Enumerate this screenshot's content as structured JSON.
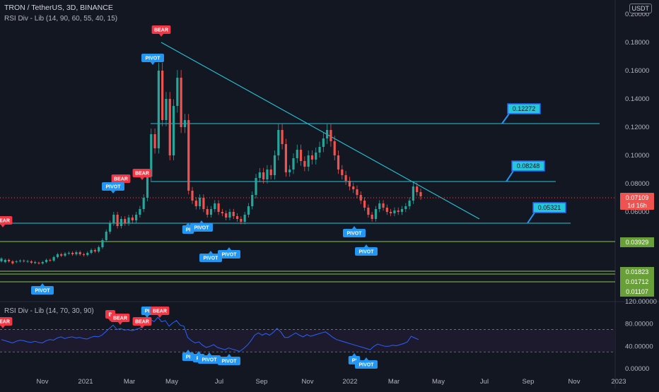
{
  "header": {
    "symbol_line": "TRON / TetherUS, 3D, BINANCE",
    "indicator_line": "RSI Div - Lib (14, 90, 60, 55, 40, 15)",
    "rsi_pane_title": "RSI Div - Lib (14, 70, 30, 90)",
    "currency_badge": "USDT"
  },
  "price_axis": {
    "ticks": [
      "0.20000",
      "0.18000",
      "0.16000",
      "0.14000",
      "0.12000",
      "0.10000",
      "0.08000",
      "0.06000"
    ]
  },
  "rsi_axis": {
    "ticks": [
      "120.00000",
      "80.00000",
      "40.00000",
      "0.00000"
    ]
  },
  "time_axis": {
    "labels": [
      "Nov",
      "2021",
      "Mar",
      "May",
      "Jul",
      "Sep",
      "Nov",
      "2022",
      "Mar",
      "May",
      "Jul",
      "Sep",
      "Nov",
      "2023"
    ]
  },
  "current_price": {
    "value": "0.07109",
    "countdown": "1d 16h"
  },
  "level_tags": [
    "0.03929",
    "0.01823",
    "0.01712",
    "0.01107"
  ],
  "level_boxes": [
    "0.12272",
    "0.08248",
    "0.05321"
  ],
  "markers": {
    "bear": "BEAR",
    "pivot": "PIVOT",
    "bear_short": "B",
    "pivot_short": "PI"
  },
  "colors": {
    "background": "#131722",
    "up_candle": "#26a69a",
    "down_candle": "#ef5350",
    "trendline": "#26c6da",
    "green_level": "#8bc34a",
    "bear_marker": "#f23645",
    "pivot_marker": "#2196f3",
    "rsi_line": "#2962ff"
  },
  "chart_data": {
    "type": "candlestick",
    "price_range": [
      0.0,
      0.2
    ],
    "rsi_range": [
      0,
      120
    ],
    "close_path": [
      [
        0.025,
        0.027
      ],
      [
        0.0245,
        0.026
      ],
      [
        0.026,
        0.025
      ],
      [
        0.025,
        0.0235
      ],
      [
        0.0245,
        0.025
      ],
      [
        0.025,
        0.0255
      ],
      [
        0.0255,
        0.025
      ],
      [
        0.0248,
        0.0252
      ],
      [
        0.025,
        0.024
      ],
      [
        0.0238,
        0.0245
      ],
      [
        0.024,
        0.0235
      ],
      [
        0.0235,
        0.0245
      ],
      [
        0.0245,
        0.026
      ],
      [
        0.026,
        0.0255
      ],
      [
        0.0255,
        0.028
      ],
      [
        0.028,
        0.03
      ],
      [
        0.03,
        0.029
      ],
      [
        0.029,
        0.0305
      ],
      [
        0.0305,
        0.031
      ],
      [
        0.031,
        0.03
      ],
      [
        0.03,
        0.0315
      ],
      [
        0.0315,
        0.03
      ],
      [
        0.03,
        0.0295
      ],
      [
        0.0295,
        0.031
      ],
      [
        0.031,
        0.033
      ],
      [
        0.033,
        0.032
      ],
      [
        0.032,
        0.035
      ],
      [
        0.035,
        0.04
      ],
      [
        0.04,
        0.046
      ],
      [
        0.046,
        0.052
      ],
      [
        0.052,
        0.058
      ],
      [
        0.058,
        0.05
      ],
      [
        0.05,
        0.055
      ],
      [
        0.055,
        0.052
      ],
      [
        0.052,
        0.056
      ],
      [
        0.056,
        0.054
      ],
      [
        0.054,
        0.058
      ],
      [
        0.058,
        0.062
      ],
      [
        0.062,
        0.07
      ],
      [
        0.07,
        0.085
      ],
      [
        0.085,
        0.115
      ],
      [
        0.115,
        0.105
      ],
      [
        0.105,
        0.16
      ],
      [
        0.16,
        0.125
      ],
      [
        0.125,
        0.14
      ],
      [
        0.14,
        0.1
      ],
      [
        0.1,
        0.135
      ],
      [
        0.135,
        0.155
      ],
      [
        0.155,
        0.12
      ],
      [
        0.12,
        0.125
      ],
      [
        0.125,
        0.075
      ],
      [
        0.075,
        0.068
      ],
      [
        0.068,
        0.064
      ],
      [
        0.064,
        0.07
      ],
      [
        0.07,
        0.062
      ],
      [
        0.062,
        0.058
      ],
      [
        0.058,
        0.062
      ],
      [
        0.062,
        0.066
      ],
      [
        0.066,
        0.06
      ],
      [
        0.06,
        0.059
      ],
      [
        0.059,
        0.056
      ],
      [
        0.056,
        0.06
      ],
      [
        0.06,
        0.057
      ],
      [
        0.057,
        0.055
      ],
      [
        0.055,
        0.053
      ],
      [
        0.053,
        0.058
      ],
      [
        0.058,
        0.064
      ],
      [
        0.064,
        0.072
      ],
      [
        0.072,
        0.084
      ],
      [
        0.084,
        0.088
      ],
      [
        0.088,
        0.083
      ],
      [
        0.083,
        0.09
      ],
      [
        0.09,
        0.086
      ],
      [
        0.086,
        0.1
      ],
      [
        0.1,
        0.118
      ],
      [
        0.118,
        0.108
      ],
      [
        0.108,
        0.088
      ],
      [
        0.088,
        0.09
      ],
      [
        0.09,
        0.098
      ],
      [
        0.098,
        0.104
      ],
      [
        0.104,
        0.096
      ],
      [
        0.096,
        0.092
      ],
      [
        0.092,
        0.1
      ],
      [
        0.1,
        0.097
      ],
      [
        0.097,
        0.102
      ],
      [
        0.102,
        0.106
      ],
      [
        0.106,
        0.112
      ],
      [
        0.112,
        0.118
      ],
      [
        0.118,
        0.11
      ],
      [
        0.11,
        0.1
      ],
      [
        0.1,
        0.09
      ],
      [
        0.09,
        0.086
      ],
      [
        0.086,
        0.082
      ],
      [
        0.082,
        0.078
      ],
      [
        0.078,
        0.076
      ],
      [
        0.076,
        0.072
      ],
      [
        0.072,
        0.068
      ],
      [
        0.068,
        0.063
      ],
      [
        0.063,
        0.058
      ],
      [
        0.058,
        0.055
      ],
      [
        0.055,
        0.062
      ],
      [
        0.062,
        0.066
      ],
      [
        0.066,
        0.063
      ],
      [
        0.063,
        0.06
      ],
      [
        0.06,
        0.059
      ],
      [
        0.059,
        0.061
      ],
      [
        0.061,
        0.06
      ],
      [
        0.06,
        0.062
      ],
      [
        0.062,
        0.064
      ],
      [
        0.064,
        0.068
      ],
      [
        0.068,
        0.078
      ],
      [
        0.078,
        0.074
      ],
      [
        0.074,
        0.071
      ]
    ],
    "rsi_values": [
      52,
      50,
      48,
      46,
      49,
      51,
      50,
      48,
      47,
      49,
      47,
      46,
      50,
      52,
      51,
      55,
      57,
      54,
      56,
      57,
      55,
      56,
      54,
      53,
      56,
      58,
      57,
      60,
      66,
      72,
      78,
      70,
      72,
      69,
      70,
      68,
      70,
      72,
      76,
      82,
      88,
      84,
      92,
      84,
      86,
      76,
      82,
      86,
      78,
      76,
      56,
      50,
      46,
      48,
      42,
      38,
      40,
      43,
      38,
      36,
      34,
      37,
      35,
      33,
      31,
      36,
      42,
      50,
      60,
      64,
      60,
      63,
      60,
      65,
      72,
      66,
      56,
      56,
      60,
      64,
      60,
      57,
      61,
      58,
      60,
      62,
      64,
      66,
      61,
      56,
      52,
      50,
      48,
      46,
      44,
      42,
      40,
      38,
      36,
      34,
      40,
      44,
      42,
      40,
      40,
      42,
      41,
      43,
      45,
      48,
      58,
      55,
      52
    ]
  }
}
